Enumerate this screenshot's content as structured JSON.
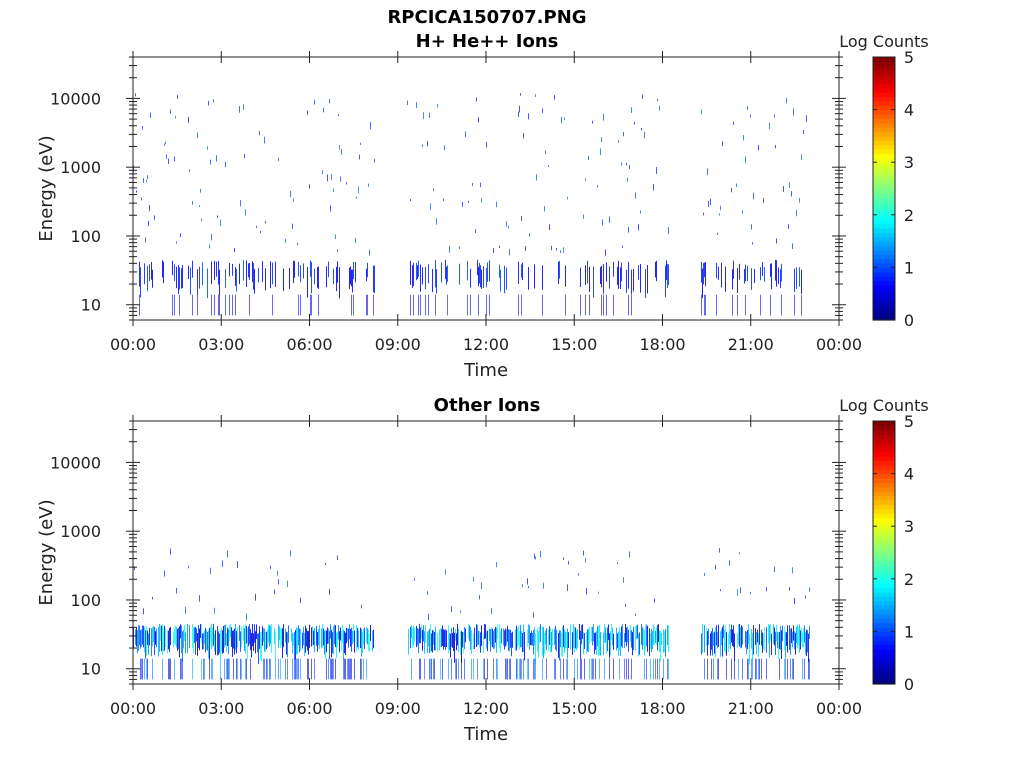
{
  "figure": {
    "title": "RPCICA150707.PNG"
  },
  "chart_data": [
    {
      "type": "heatmap",
      "title": "H+ He++ Ions",
      "xlabel": "Time",
      "ylabel": "Energy (eV)",
      "y_scale": "log",
      "ylim": [
        6,
        40000
      ],
      "xlim": [
        "00:00",
        "24:00"
      ],
      "x_ticks": [
        "00:00",
        "03:00",
        "06:00",
        "09:00",
        "12:00",
        "15:00",
        "18:00",
        "21:00",
        "00:00"
      ],
      "y_ticks": [
        10,
        100,
        1000,
        10000
      ],
      "y_tick_labels": [
        "10",
        "100",
        "1000",
        "10000"
      ],
      "colorbar": {
        "label": "Log Counts",
        "range": [
          0,
          5
        ],
        "ticks": [
          "0",
          "1",
          "2",
          "3",
          "4",
          "5"
        ],
        "colormap": "jet"
      },
      "data_gaps_hours": [
        [
          8.2,
          9.3
        ],
        [
          18.2,
          19.3
        ],
        [
          23.0,
          24.0
        ]
      ],
      "data_summary": "Sparse counts, mostly low energy (15-45 eV), log counts 0-1; scattered single counts up to ~10000 eV"
    },
    {
      "type": "heatmap",
      "title": "Other Ions",
      "xlabel": "Time",
      "ylabel": "Energy (eV)",
      "y_scale": "log",
      "ylim": [
        6,
        40000
      ],
      "xlim": [
        "00:00",
        "24:00"
      ],
      "x_ticks": [
        "00:00",
        "03:00",
        "06:00",
        "09:00",
        "12:00",
        "15:00",
        "18:00",
        "21:00",
        "00:00"
      ],
      "y_ticks": [
        10,
        100,
        1000,
        10000
      ],
      "y_tick_labels": [
        "10",
        "100",
        "1000",
        "10000"
      ],
      "colorbar": {
        "label": "Log Counts",
        "range": [
          0,
          5
        ],
        "ticks": [
          "0",
          "1",
          "2",
          "3",
          "4",
          "5"
        ],
        "colormap": "jet"
      },
      "data_gaps_hours": [
        [
          8.2,
          9.3
        ],
        [
          18.2,
          19.3
        ],
        [
          23.0,
          24.0
        ]
      ],
      "data_summary": "Dense low-energy band 10-45 eV with log counts up to ~2; sparse counts up to ~500 eV"
    }
  ]
}
